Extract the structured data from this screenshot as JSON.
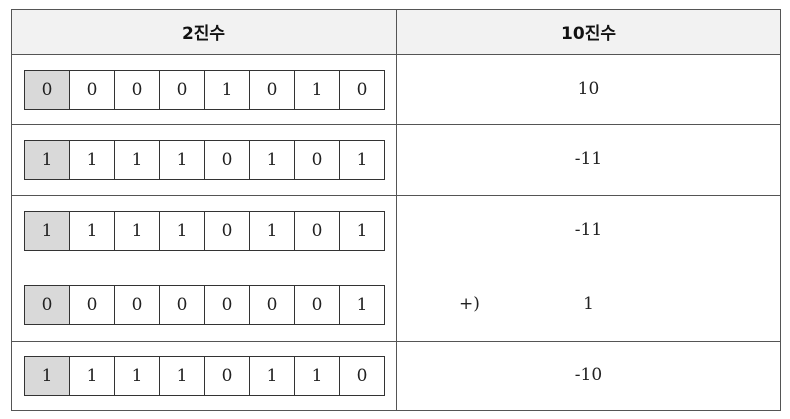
{
  "header": {
    "binary": "2진수",
    "decimal": "10진수"
  },
  "rows": [
    {
      "bits": [
        "0",
        "0",
        "0",
        "0",
        "1",
        "0",
        "1",
        "0"
      ],
      "decimal": "10"
    },
    {
      "bits": [
        "1",
        "1",
        "1",
        "1",
        "0",
        "1",
        "0",
        "1"
      ],
      "decimal": "-11"
    },
    {
      "bits": [
        "1",
        "1",
        "1",
        "1",
        "0",
        "1",
        "0",
        "1"
      ],
      "decimal": "-11"
    },
    {
      "bits": [
        "0",
        "0",
        "0",
        "0",
        "0",
        "0",
        "0",
        "1"
      ],
      "decimal": "1",
      "operator": "+)"
    },
    {
      "bits": [
        "1",
        "1",
        "1",
        "1",
        "0",
        "1",
        "1",
        "0"
      ],
      "decimal": "-10"
    }
  ],
  "colors": {
    "sign_bit": "#d9d9d9",
    "header_bg": "#f2f2f2",
    "border": "#555555"
  }
}
